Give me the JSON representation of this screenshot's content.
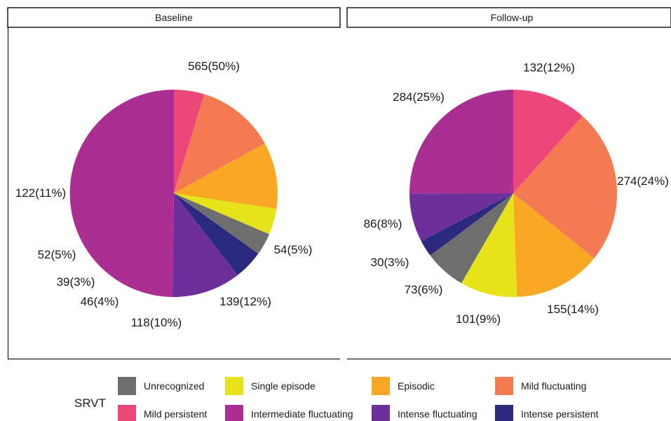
{
  "chart_data": {
    "type": "pie",
    "facet_variable": "",
    "panels": [
      {
        "title": "Baseline",
        "slices": [
          {
            "category": "Mild persistent",
            "value": 54,
            "label": "54(5%)"
          },
          {
            "category": "Mild fluctuating",
            "value": 139,
            "label": "139(12%)"
          },
          {
            "category": "Episodic",
            "value": 118,
            "label": "118(10%)"
          },
          {
            "category": "Single episode",
            "value": 46,
            "label": "46(4%)"
          },
          {
            "category": "Unrecognized",
            "value": 39,
            "label": "39(3%)"
          },
          {
            "category": "Intense persistent",
            "value": 52,
            "label": "52(5%)"
          },
          {
            "category": "Intense fluctuating",
            "value": 122,
            "label": "122(11%)"
          },
          {
            "category": "Intermediate fluctuating",
            "value": 565,
            "label": "565(50%)"
          }
        ]
      },
      {
        "title": "Follow-up",
        "slices": [
          {
            "category": "Mild persistent",
            "value": 132,
            "label": "132(12%)"
          },
          {
            "category": "Mild fluctuating",
            "value": 274,
            "label": "274(24%)"
          },
          {
            "category": "Episodic",
            "value": 155,
            "label": "155(14%)"
          },
          {
            "category": "Single episode",
            "value": 101,
            "label": "101(9%)"
          },
          {
            "category": "Unrecognized",
            "value": 73,
            "label": "73(6%)"
          },
          {
            "category": "Intense persistent",
            "value": 30,
            "label": "30(3%)"
          },
          {
            "category": "Intense fluctuating",
            "value": 86,
            "label": "86(8%)"
          },
          {
            "category": "Intermediate fluctuating",
            "value": 284,
            "label": "284(25%)"
          }
        ]
      }
    ],
    "legend": {
      "title": "SRVT",
      "position": "bottom",
      "items": [
        {
          "name": "Unrecognized",
          "color": "#6e6e6e"
        },
        {
          "name": "Single episode",
          "color": "#e6e31a"
        },
        {
          "name": "Episodic",
          "color": "#f9a825"
        },
        {
          "name": "Mild fluctuating",
          "color": "#f47a52"
        },
        {
          "name": "Mild persistent",
          "color": "#eb4778"
        },
        {
          "name": "Intermediate fluctuating",
          "color": "#ab2f93"
        },
        {
          "name": "Intense fluctuating",
          "color": "#6d2f9a"
        },
        {
          "name": "Intense persistent",
          "color": "#2c2a7e"
        }
      ]
    }
  }
}
